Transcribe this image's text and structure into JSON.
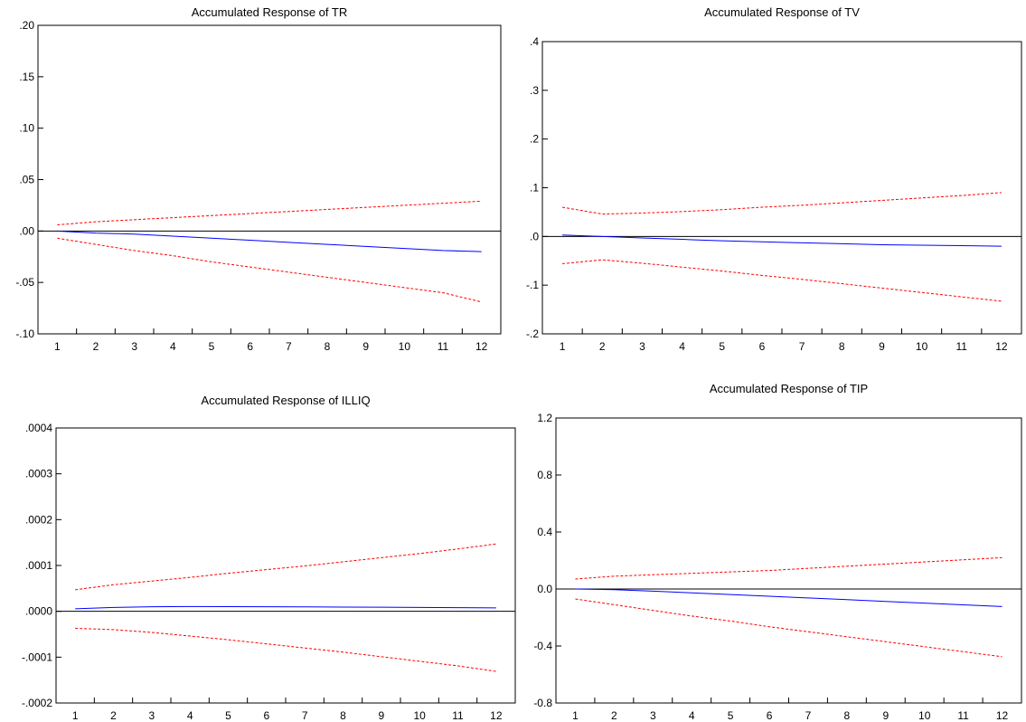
{
  "chart_data": [
    {
      "type": "line",
      "title": "Accumulated Response of TR",
      "x": [
        1,
        2,
        3,
        4,
        5,
        6,
        7,
        8,
        9,
        10,
        11,
        12
      ],
      "ylim": [
        -0.1,
        0.2
      ],
      "yticks": [
        ".20",
        ".15",
        ".10",
        ".05",
        ".00",
        "-.05",
        "-.10"
      ],
      "ytick_values": [
        0.2,
        0.15,
        0.1,
        0.05,
        0.0,
        -0.05,
        -0.1
      ],
      "zero_line": true,
      "series": [
        {
          "role": "response",
          "color": "#0000ff",
          "dashed": false,
          "values": [
            0.0,
            -0.002,
            -0.003,
            -0.005,
            -0.007,
            -0.009,
            -0.011,
            -0.013,
            -0.015,
            -0.017,
            -0.019,
            -0.02
          ]
        },
        {
          "role": "upper-band",
          "color": "#ff0000",
          "dashed": true,
          "values": [
            0.006,
            0.009,
            0.011,
            0.013,
            0.015,
            0.017,
            0.019,
            0.021,
            0.023,
            0.025,
            0.027,
            0.029
          ]
        },
        {
          "role": "lower-band",
          "color": "#ff0000",
          "dashed": true,
          "values": [
            -0.007,
            -0.013,
            -0.019,
            -0.024,
            -0.03,
            -0.035,
            -0.04,
            -0.045,
            -0.05,
            -0.055,
            -0.06,
            -0.069
          ]
        }
      ]
    },
    {
      "type": "line",
      "title": "Accumulated Response of TV",
      "x": [
        1,
        2,
        3,
        4,
        5,
        6,
        7,
        8,
        9,
        10,
        11,
        12
      ],
      "ylim": [
        -0.2,
        0.4
      ],
      "yticks": [
        ".4",
        ".3",
        ".2",
        ".1",
        ".0",
        "-.1",
        "-.2"
      ],
      "ytick_values": [
        0.4,
        0.3,
        0.2,
        0.1,
        0.0,
        -0.1,
        -0.2
      ],
      "zero_line": true,
      "series": [
        {
          "role": "response",
          "color": "#0000ff",
          "dashed": false,
          "values": [
            0.003,
            0.0,
            -0.003,
            -0.006,
            -0.009,
            -0.011,
            -0.013,
            -0.015,
            -0.017,
            -0.018,
            -0.019,
            -0.02
          ]
        },
        {
          "role": "upper-band",
          "color": "#ff0000",
          "dashed": true,
          "values": [
            0.06,
            0.046,
            0.048,
            0.051,
            0.055,
            0.06,
            0.064,
            0.069,
            0.074,
            0.079,
            0.084,
            0.09
          ]
        },
        {
          "role": "lower-band",
          "color": "#ff0000",
          "dashed": true,
          "values": [
            -0.056,
            -0.048,
            -0.055,
            -0.063,
            -0.071,
            -0.08,
            -0.088,
            -0.097,
            -0.106,
            -0.115,
            -0.124,
            -0.133
          ]
        }
      ]
    },
    {
      "type": "line",
      "title": "Accumulated Response of ILLIQ",
      "x": [
        1,
        2,
        3,
        4,
        5,
        6,
        7,
        8,
        9,
        10,
        11,
        12
      ],
      "ylim": [
        -0.0002,
        0.0004
      ],
      "yticks": [
        ".0004",
        ".0003",
        ".0002",
        ".0001",
        ".0000",
        "-.0001",
        "-.0002"
      ],
      "ytick_values": [
        0.0004,
        0.0003,
        0.0002,
        0.0001,
        0.0,
        -0.0001,
        -0.0002
      ],
      "zero_line": true,
      "series": [
        {
          "role": "response",
          "color": "#0000ff",
          "dashed": false,
          "values": [
            5.5e-06,
            8.5e-06,
            1e-05,
            1.05e-05,
            1.02e-05,
            1e-05,
            9.7e-06,
            9.3e-06,
            8.9e-06,
            8.5e-06,
            8e-06,
            7.5e-06
          ]
        },
        {
          "role": "upper-band",
          "color": "#ff0000",
          "dashed": true,
          "values": [
            4.7e-05,
            5.8e-05,
            6.6e-05,
            7.4e-05,
            8.3e-05,
            9.1e-05,
            9.9e-05,
            0.000108,
            0.000117,
            0.000126,
            0.000136,
            0.000147
          ]
        },
        {
          "role": "lower-band",
          "color": "#ff0000",
          "dashed": true,
          "values": [
            -3.7e-05,
            -4e-05,
            -4.6e-05,
            -5.4e-05,
            -6.2e-05,
            -7.1e-05,
            -8e-05,
            -8.9e-05,
            -9.9e-05,
            -0.000109,
            -0.000119,
            -0.000131
          ]
        }
      ]
    },
    {
      "type": "line",
      "title": "Accumulated Response of TIP",
      "x": [
        1,
        2,
        3,
        4,
        5,
        6,
        7,
        8,
        9,
        10,
        11,
        12
      ],
      "ylim": [
        -0.8,
        1.2
      ],
      "yticks": [
        "1.2",
        "0.8",
        "0.4",
        "0.0",
        "-0.4",
        "-0.8"
      ],
      "ytick_values": [
        1.2,
        0.8,
        0.4,
        0.0,
        -0.4,
        -0.8
      ],
      "zero_line": true,
      "series": [
        {
          "role": "response",
          "color": "#0000ff",
          "dashed": false,
          "values": [
            0.0,
            -0.005,
            -0.015,
            -0.027,
            -0.039,
            -0.051,
            -0.063,
            -0.075,
            -0.087,
            -0.099,
            -0.111,
            -0.123
          ]
        },
        {
          "role": "upper-band",
          "color": "#ff0000",
          "dashed": true,
          "values": [
            0.07,
            0.09,
            0.1,
            0.11,
            0.12,
            0.13,
            0.145,
            0.16,
            0.175,
            0.19,
            0.205,
            0.22
          ]
        },
        {
          "role": "lower-band",
          "color": "#ff0000",
          "dashed": true,
          "values": [
            -0.07,
            -0.11,
            -0.15,
            -0.19,
            -0.225,
            -0.265,
            -0.3,
            -0.335,
            -0.37,
            -0.405,
            -0.44,
            -0.475
          ]
        }
      ]
    }
  ]
}
